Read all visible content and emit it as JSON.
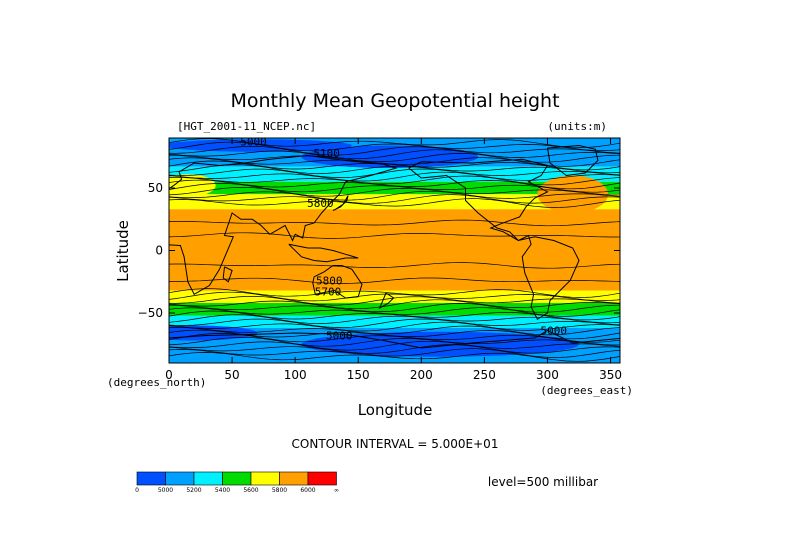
{
  "chart_data": {
    "type": "heatmap",
    "title": "Monthly Mean Geopotential height",
    "subtitle_left": "[HGT_2001-11_NCEP.nc]",
    "subtitle_right": "(units:m)",
    "xlabel": "Longitude",
    "ylabel": "Latitude",
    "x_unit_label": "(degrees_east)",
    "y_unit_label": "(degrees_north)",
    "xlim": [
      0,
      357.5
    ],
    "ylim": [
      -90,
      90
    ],
    "x_ticks": [
      0,
      50,
      100,
      150,
      200,
      250,
      300,
      350
    ],
    "y_ticks": [
      50,
      0,
      -50
    ],
    "y_tick_labels": [
      "50",
      "0",
      "−50"
    ],
    "contour_interval_label": "CONTOUR INTERVAL = 5.000E+01",
    "level_label": "level=500 millibar",
    "contour_labels": [
      {
        "lon": 67,
        "lat": 84,
        "text": "5000"
      },
      {
        "lon": 125,
        "lat": 75,
        "text": "5100"
      },
      {
        "lon": 120,
        "lat": 35,
        "text": "5800"
      },
      {
        "lon": 127,
        "lat": -27,
        "text": "5800"
      },
      {
        "lon": 126,
        "lat": -36,
        "text": "5700"
      },
      {
        "lon": 135,
        "lat": -71,
        "text": "5000"
      },
      {
        "lon": 305,
        "lat": -67,
        "text": "5000"
      }
    ],
    "colorbar": {
      "colors": [
        "#0050ff",
        "#00a0ff",
        "#00f0ff",
        "#00dc00",
        "#ffff00",
        "#ffa000",
        "#ff0000"
      ],
      "labels": [
        "0",
        "5000",
        "5200",
        "5400",
        "5600",
        "5800",
        "6000",
        "∞"
      ]
    },
    "bands": [
      {
        "lat_top": 90,
        "lat_bottom": 67,
        "color": "#00a0ff"
      },
      {
        "lat_top": 67,
        "lat_bottom": 55,
        "color": "#00f0ff"
      },
      {
        "lat_top": 55,
        "lat_bottom": 45,
        "color": "#00dc00"
      },
      {
        "lat_top": 45,
        "lat_bottom": 33,
        "color": "#ffff00"
      },
      {
        "lat_top": 33,
        "lat_bottom": -32,
        "color": "#ffa000"
      },
      {
        "lat_top": -32,
        "lat_bottom": -42,
        "color": "#ffff00"
      },
      {
        "lat_top": -42,
        "lat_bottom": -52,
        "color": "#00dc00"
      },
      {
        "lat_top": -52,
        "lat_bottom": -62,
        "color": "#00f0ff"
      },
      {
        "lat_top": -62,
        "lat_bottom": -90,
        "color": "#00a0ff"
      }
    ],
    "blobs": [
      {
        "lon": 70,
        "lat": 84,
        "rlon": 75,
        "rlat": 5,
        "color": "#0050ff"
      },
      {
        "lon": 175,
        "lat": 75,
        "rlon": 70,
        "rlat": 9,
        "color": "#0050ff"
      },
      {
        "lon": 20,
        "lat": -66,
        "rlon": 50,
        "rlat": 6,
        "color": "#0050ff"
      },
      {
        "lon": 215,
        "lat": -75,
        "rlon": 110,
        "rlat": 10,
        "color": "#0050ff"
      },
      {
        "lon": 320,
        "lat": 45,
        "rlon": 28,
        "rlat": 15,
        "color": "#ffa000"
      },
      {
        "lon": 15,
        "lat": 52,
        "rlon": 22,
        "rlat": 9,
        "color": "#ffff00"
      }
    ],
    "grid": false
  }
}
